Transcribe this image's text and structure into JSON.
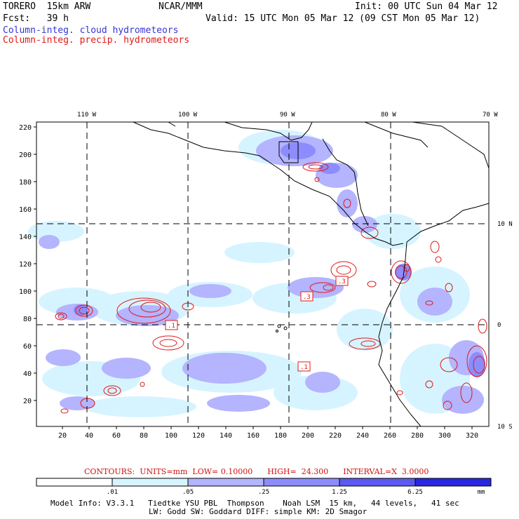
{
  "header": {
    "model": "TORERO  15km ARW",
    "center": "NCAR/MMM",
    "init": "Init: 00 UTC Sun 04 Mar 12",
    "fcst": "Fcst:   39 h",
    "valid": "Valid: 15 UTC Mon 05 Mar 12 (09 CST Mon 05 Mar 12)",
    "field1": "Column-integ. cloud hydrometeors",
    "field2": "Column-integ. precip. hydrometeors"
  },
  "colors": {
    "cloud_field": "#3434d8",
    "precip_field": "#e01818",
    "grid": "#000000"
  },
  "axes": {
    "top_labels": [
      "110 W",
      "100 W",
      "90 W",
      "80 W",
      "70 W"
    ],
    "right_labels": [
      "10 N",
      "0",
      "10 S"
    ],
    "left_ticks": [
      "220",
      "200",
      "180",
      "160",
      "140",
      "120",
      "100",
      "80",
      "60",
      "40",
      "20"
    ],
    "bottom_ticks": [
      "20",
      "40",
      "60",
      "80",
      "100",
      "120",
      "140",
      "160",
      "180",
      "200",
      "220",
      "240",
      "260",
      "280",
      "300",
      "320"
    ]
  },
  "contour_labels": [
    ".1",
    ".3",
    ".3",
    ".1"
  ],
  "contours_note": {
    "text": "CONTOURS:  UNITS=mm  LOW= 0.10000      HIGH=  24.300      INTERVAL=X  3.0000"
  },
  "colorbar": {
    "levels": [
      ".01",
      ".05",
      ".25",
      "1.25",
      "6.25"
    ],
    "units": "mm",
    "colors": [
      "#ffffff",
      "#d6f4ff",
      "#b4b4ff",
      "#8c8cff",
      "#5a5af0",
      "#2828e0"
    ]
  },
  "footer": {
    "line1": "Model Info: V3.3.1   Tiedtke YSU PBL  Thompson    Noah LSM  15 km,   44 levels,   41 sec",
    "line2": "LW: Godd SW: Goddard DIFF: simple KM: 2D Smagor"
  }
}
